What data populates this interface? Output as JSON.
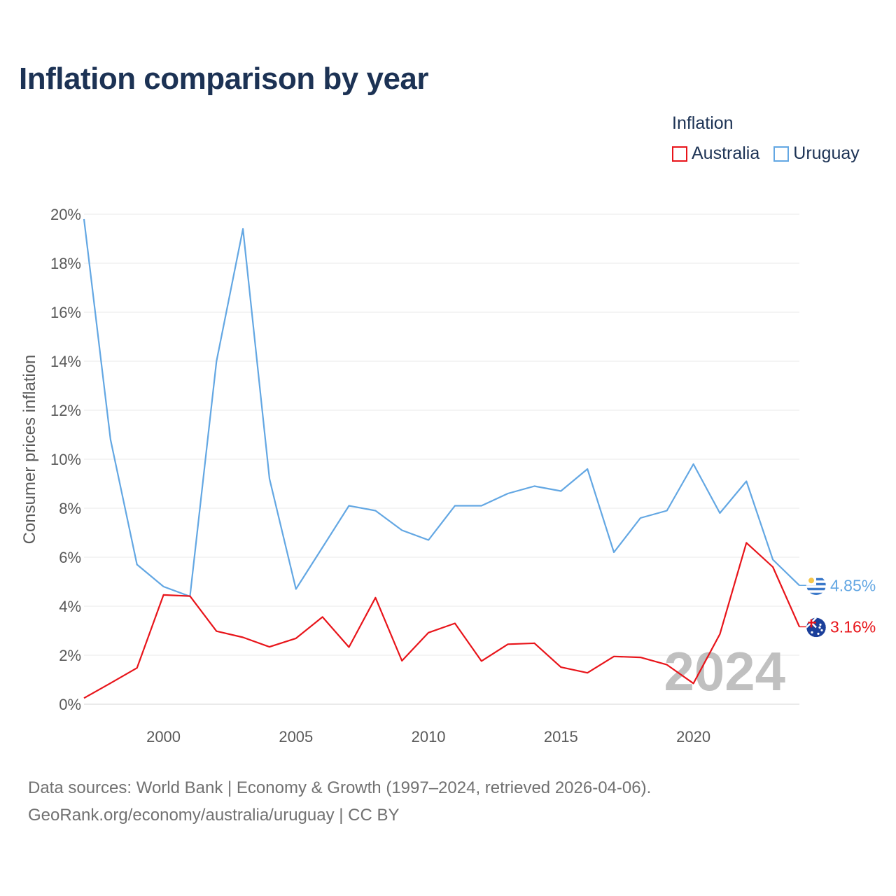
{
  "title": "Inflation comparison by year",
  "legend": {
    "title": "Inflation",
    "items": [
      {
        "label": "Australia",
        "color": "#e8141a"
      },
      {
        "label": "Uruguay",
        "color": "#63a7e3"
      }
    ]
  },
  "source": {
    "line1": "Data sources: World Bank | Economy & Growth (1997–2024, retrieved 2026-04-06).",
    "line2": "GeoRank.org/economy/australia/uruguay | CC BY"
  },
  "chart_data": {
    "type": "line",
    "title": "Inflation comparison by year",
    "xlabel": "",
    "ylabel": "Consumer prices inflation",
    "x": [
      1997,
      1998,
      1999,
      2000,
      2001,
      2002,
      2003,
      2004,
      2005,
      2006,
      2007,
      2008,
      2009,
      2010,
      2011,
      2012,
      2013,
      2014,
      2015,
      2016,
      2017,
      2018,
      2019,
      2020,
      2021,
      2022,
      2023,
      2024
    ],
    "xlim": [
      1997,
      2024
    ],
    "ylim": [
      0,
      20
    ],
    "x_ticks": [
      2000,
      2005,
      2010,
      2015,
      2020
    ],
    "y_ticks": [
      0,
      2,
      4,
      6,
      8,
      10,
      12,
      14,
      16,
      18,
      20
    ],
    "y_tick_labels": [
      "0%",
      "2%",
      "4%",
      "6%",
      "8%",
      "10%",
      "12%",
      "14%",
      "16%",
      "18%",
      "20%"
    ],
    "grid": true,
    "legend_position": "top-right",
    "current_year_label": "2024",
    "series": [
      {
        "name": "Uruguay",
        "color": "#63a7e3",
        "end_label": "4.85%",
        "flag_icon": "uruguay-flag-icon",
        "values": [
          19.8,
          10.8,
          5.7,
          4.8,
          4.4,
          14.0,
          19.4,
          9.2,
          4.7,
          6.4,
          8.1,
          7.9,
          7.1,
          6.7,
          8.1,
          8.1,
          8.6,
          8.9,
          8.7,
          9.6,
          6.2,
          7.6,
          7.9,
          9.8,
          7.8,
          9.1,
          5.9,
          4.85
        ]
      },
      {
        "name": "Australia",
        "color": "#e8141a",
        "end_label": "3.16%",
        "flag_icon": "australia-flag-icon",
        "values": [
          0.25,
          0.86,
          1.48,
          4.46,
          4.41,
          2.98,
          2.73,
          2.34,
          2.69,
          3.56,
          2.33,
          4.35,
          1.77,
          2.92,
          3.3,
          1.76,
          2.45,
          2.49,
          1.51,
          1.28,
          1.95,
          1.91,
          1.61,
          0.85,
          2.86,
          6.59,
          5.6,
          3.16
        ]
      }
    ]
  }
}
